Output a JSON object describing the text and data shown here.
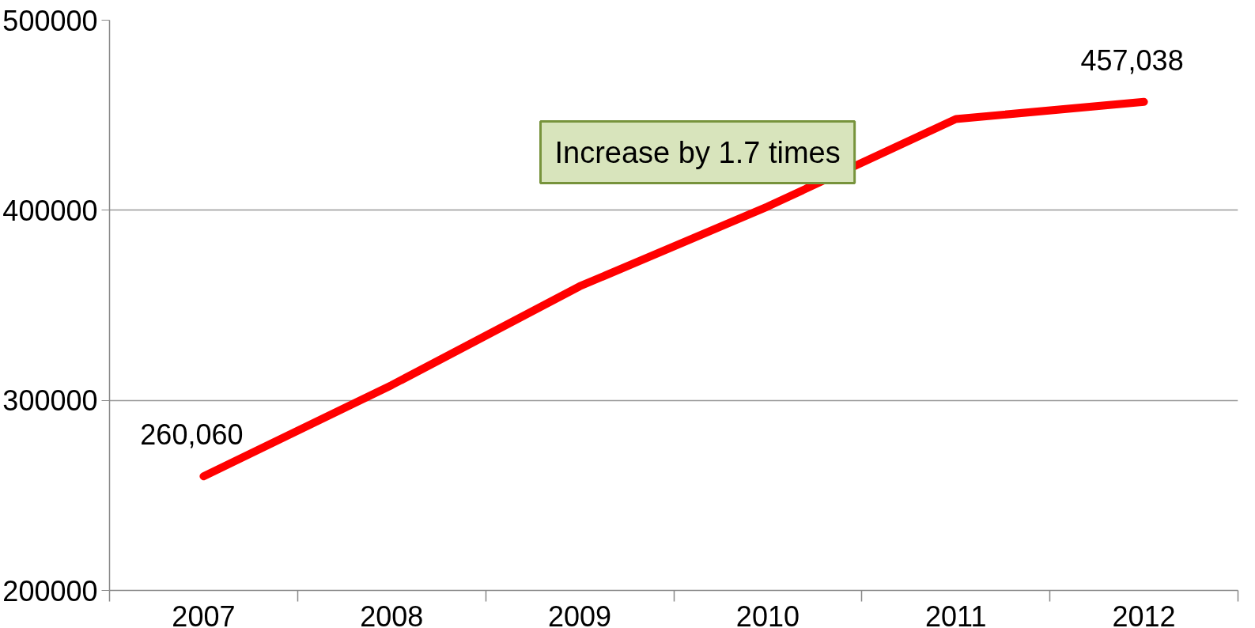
{
  "chart_data": {
    "type": "line",
    "categories": [
      "2007",
      "2008",
      "2009",
      "2010",
      "2011",
      "2012"
    ],
    "series": [
      {
        "color": "#ff0000",
        "values": [
          260060,
          308000,
          360000,
          402000,
          448000,
          457038
        ],
        "value_labels": [
          "260,060",
          null,
          null,
          null,
          null,
          "457,038"
        ]
      }
    ],
    "ylim": [
      200000,
      500000
    ],
    "yticks": [
      200000,
      300000,
      400000,
      500000
    ],
    "grid": "y",
    "marker": "none",
    "line_style": "solid",
    "annotations": [
      "Increase by 1.7 times"
    ]
  }
}
